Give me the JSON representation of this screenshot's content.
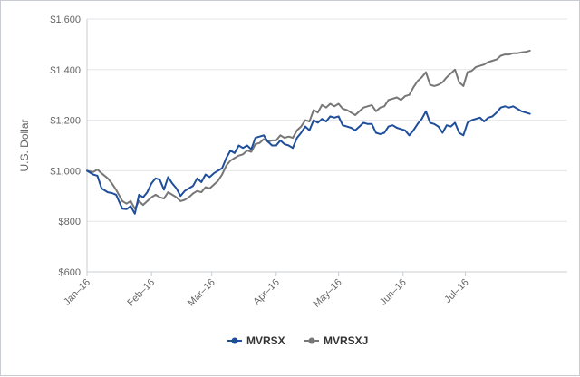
{
  "chart_data": {
    "type": "line",
    "title": "",
    "xlabel": "",
    "ylabel": "U.S. Dollar",
    "ylim": [
      600,
      1600
    ],
    "xlim": [
      "2016-01-01",
      "2016-08-19"
    ],
    "y_ticks": [
      600,
      800,
      1000,
      1200,
      1400,
      1600
    ],
    "y_tick_labels": [
      "$600",
      "$800",
      "$1,000",
      "$1,200",
      "$1,400",
      "$1,600"
    ],
    "x_ticks": [
      "2016-01-01",
      "2016-02-01",
      "2016-03-01",
      "2016-04-01",
      "2016-05-01",
      "2016-06-01",
      "2016-07-01"
    ],
    "x_tick_labels": [
      "Jan–16",
      "Feb–16",
      "Mar–16",
      "Apr–16",
      "May–16",
      "Jun–16",
      "Jul–16"
    ],
    "grid": "horizontal",
    "legend": "bottom-center",
    "series": [
      {
        "name": "MVRSX",
        "color": "#1f4e9a",
        "points": [
          [
            "2016-01-01",
            1000
          ],
          [
            "2016-01-04",
            985
          ],
          [
            "2016-01-06",
            980
          ],
          [
            "2016-01-08",
            930
          ],
          [
            "2016-01-11",
            915
          ],
          [
            "2016-01-13",
            912
          ],
          [
            "2016-01-15",
            905
          ],
          [
            "2016-01-18",
            850
          ],
          [
            "2016-01-20",
            848
          ],
          [
            "2016-01-22",
            860
          ],
          [
            "2016-01-24",
            830
          ],
          [
            "2016-01-26",
            905
          ],
          [
            "2016-01-28",
            895
          ],
          [
            "2016-01-30",
            915
          ],
          [
            "2016-02-01",
            950
          ],
          [
            "2016-02-03",
            970
          ],
          [
            "2016-02-05",
            965
          ],
          [
            "2016-02-07",
            925
          ],
          [
            "2016-02-09",
            975
          ],
          [
            "2016-02-11",
            950
          ],
          [
            "2016-02-13",
            930
          ],
          [
            "2016-02-15",
            900
          ],
          [
            "2016-02-17",
            920
          ],
          [
            "2016-02-19",
            930
          ],
          [
            "2016-02-21",
            940
          ],
          [
            "2016-02-23",
            970
          ],
          [
            "2016-02-25",
            955
          ],
          [
            "2016-02-27",
            985
          ],
          [
            "2016-02-29",
            975
          ],
          [
            "2016-03-02",
            990
          ],
          [
            "2016-03-04",
            1000
          ],
          [
            "2016-03-06",
            1010
          ],
          [
            "2016-03-08",
            1050
          ],
          [
            "2016-03-10",
            1080
          ],
          [
            "2016-03-12",
            1070
          ],
          [
            "2016-03-14",
            1100
          ],
          [
            "2016-03-16",
            1090
          ],
          [
            "2016-03-18",
            1100
          ],
          [
            "2016-03-20",
            1085
          ],
          [
            "2016-03-22",
            1130
          ],
          [
            "2016-03-24",
            1135
          ],
          [
            "2016-03-26",
            1140
          ],
          [
            "2016-03-28",
            1115
          ],
          [
            "2016-03-30",
            1100
          ],
          [
            "2016-04-01",
            1100
          ],
          [
            "2016-04-03",
            1120
          ],
          [
            "2016-04-05",
            1105
          ],
          [
            "2016-04-07",
            1100
          ],
          [
            "2016-04-09",
            1090
          ],
          [
            "2016-04-11",
            1130
          ],
          [
            "2016-04-13",
            1150
          ],
          [
            "2016-04-15",
            1175
          ],
          [
            "2016-04-17",
            1160
          ],
          [
            "2016-04-19",
            1200
          ],
          [
            "2016-04-21",
            1190
          ],
          [
            "2016-04-23",
            1205
          ],
          [
            "2016-04-25",
            1195
          ],
          [
            "2016-04-27",
            1215
          ],
          [
            "2016-04-29",
            1210
          ],
          [
            "2016-05-01",
            1215
          ],
          [
            "2016-05-03",
            1180
          ],
          [
            "2016-05-05",
            1175
          ],
          [
            "2016-05-07",
            1170
          ],
          [
            "2016-05-09",
            1160
          ],
          [
            "2016-05-11",
            1175
          ],
          [
            "2016-05-13",
            1190
          ],
          [
            "2016-05-15",
            1185
          ],
          [
            "2016-05-17",
            1185
          ],
          [
            "2016-05-19",
            1150
          ],
          [
            "2016-05-21",
            1145
          ],
          [
            "2016-05-23",
            1150
          ],
          [
            "2016-05-25",
            1175
          ],
          [
            "2016-05-27",
            1180
          ],
          [
            "2016-05-29",
            1170
          ],
          [
            "2016-05-31",
            1165
          ],
          [
            "2016-06-02",
            1160
          ],
          [
            "2016-06-04",
            1140
          ],
          [
            "2016-06-06",
            1160
          ],
          [
            "2016-06-08",
            1185
          ],
          [
            "2016-06-10",
            1205
          ],
          [
            "2016-06-12",
            1235
          ],
          [
            "2016-06-14",
            1190
          ],
          [
            "2016-06-16",
            1185
          ],
          [
            "2016-06-18",
            1175
          ],
          [
            "2016-06-20",
            1150
          ],
          [
            "2016-06-22",
            1180
          ],
          [
            "2016-06-24",
            1175
          ],
          [
            "2016-06-26",
            1190
          ],
          [
            "2016-06-28",
            1150
          ],
          [
            "2016-06-30",
            1140
          ],
          [
            "2016-07-02",
            1190
          ],
          [
            "2016-07-04",
            1200
          ],
          [
            "2016-07-06",
            1205
          ],
          [
            "2016-07-08",
            1210
          ],
          [
            "2016-07-10",
            1195
          ],
          [
            "2016-07-12",
            1210
          ],
          [
            "2016-07-14",
            1215
          ],
          [
            "2016-07-16",
            1230
          ],
          [
            "2016-07-18",
            1250
          ],
          [
            "2016-07-20",
            1255
          ],
          [
            "2016-07-22",
            1250
          ],
          [
            "2016-07-24",
            1255
          ],
          [
            "2016-07-26",
            1245
          ],
          [
            "2016-07-28",
            1235
          ],
          [
            "2016-07-30",
            1230
          ],
          [
            "2016-08-01",
            1225
          ]
        ]
      },
      {
        "name": "MVRSXJ",
        "color": "#777777",
        "points": [
          [
            "2016-01-01",
            1000
          ],
          [
            "2016-01-04",
            995
          ],
          [
            "2016-01-06",
            1005
          ],
          [
            "2016-01-08",
            990
          ],
          [
            "2016-01-11",
            970
          ],
          [
            "2016-01-13",
            950
          ],
          [
            "2016-01-15",
            925
          ],
          [
            "2016-01-18",
            880
          ],
          [
            "2016-01-20",
            870
          ],
          [
            "2016-01-22",
            880
          ],
          [
            "2016-01-24",
            850
          ],
          [
            "2016-01-26",
            880
          ],
          [
            "2016-01-28",
            865
          ],
          [
            "2016-01-30",
            880
          ],
          [
            "2016-02-01",
            895
          ],
          [
            "2016-02-03",
            905
          ],
          [
            "2016-02-05",
            895
          ],
          [
            "2016-02-07",
            890
          ],
          [
            "2016-02-09",
            915
          ],
          [
            "2016-02-11",
            905
          ],
          [
            "2016-02-13",
            895
          ],
          [
            "2016-02-15",
            880
          ],
          [
            "2016-02-17",
            885
          ],
          [
            "2016-02-19",
            895
          ],
          [
            "2016-02-21",
            910
          ],
          [
            "2016-02-23",
            920
          ],
          [
            "2016-02-25",
            915
          ],
          [
            "2016-02-27",
            935
          ],
          [
            "2016-02-29",
            930
          ],
          [
            "2016-03-02",
            945
          ],
          [
            "2016-03-04",
            960
          ],
          [
            "2016-03-06",
            985
          ],
          [
            "2016-03-08",
            1020
          ],
          [
            "2016-03-10",
            1040
          ],
          [
            "2016-03-12",
            1050
          ],
          [
            "2016-03-14",
            1060
          ],
          [
            "2016-03-16",
            1065
          ],
          [
            "2016-03-18",
            1080
          ],
          [
            "2016-03-20",
            1075
          ],
          [
            "2016-03-22",
            1105
          ],
          [
            "2016-03-24",
            1110
          ],
          [
            "2016-03-26",
            1125
          ],
          [
            "2016-03-28",
            1115
          ],
          [
            "2016-03-30",
            1120
          ],
          [
            "2016-04-01",
            1120
          ],
          [
            "2016-04-03",
            1140
          ],
          [
            "2016-04-05",
            1130
          ],
          [
            "2016-04-07",
            1135
          ],
          [
            "2016-04-09",
            1130
          ],
          [
            "2016-04-11",
            1160
          ],
          [
            "2016-04-13",
            1175
          ],
          [
            "2016-04-15",
            1200
          ],
          [
            "2016-04-17",
            1195
          ],
          [
            "2016-04-19",
            1240
          ],
          [
            "2016-04-21",
            1230
          ],
          [
            "2016-04-23",
            1260
          ],
          [
            "2016-04-25",
            1250
          ],
          [
            "2016-04-27",
            1265
          ],
          [
            "2016-04-29",
            1255
          ],
          [
            "2016-05-01",
            1265
          ],
          [
            "2016-05-03",
            1245
          ],
          [
            "2016-05-05",
            1240
          ],
          [
            "2016-05-07",
            1230
          ],
          [
            "2016-05-09",
            1220
          ],
          [
            "2016-05-11",
            1235
          ],
          [
            "2016-05-13",
            1250
          ],
          [
            "2016-05-15",
            1255
          ],
          [
            "2016-05-17",
            1260
          ],
          [
            "2016-05-19",
            1235
          ],
          [
            "2016-05-21",
            1250
          ],
          [
            "2016-05-23",
            1255
          ],
          [
            "2016-05-25",
            1280
          ],
          [
            "2016-05-27",
            1285
          ],
          [
            "2016-05-29",
            1290
          ],
          [
            "2016-05-31",
            1280
          ],
          [
            "2016-06-02",
            1295
          ],
          [
            "2016-06-04",
            1300
          ],
          [
            "2016-06-06",
            1330
          ],
          [
            "2016-06-08",
            1355
          ],
          [
            "2016-06-10",
            1370
          ],
          [
            "2016-06-12",
            1390
          ],
          [
            "2016-06-14",
            1340
          ],
          [
            "2016-06-16",
            1335
          ],
          [
            "2016-06-18",
            1340
          ],
          [
            "2016-06-20",
            1350
          ],
          [
            "2016-06-22",
            1370
          ],
          [
            "2016-06-24",
            1385
          ],
          [
            "2016-06-26",
            1400
          ],
          [
            "2016-06-28",
            1350
          ],
          [
            "2016-06-30",
            1335
          ],
          [
            "2016-07-02",
            1390
          ],
          [
            "2016-07-04",
            1395
          ],
          [
            "2016-07-06",
            1410
          ],
          [
            "2016-07-08",
            1415
          ],
          [
            "2016-07-10",
            1420
          ],
          [
            "2016-07-12",
            1430
          ],
          [
            "2016-07-14",
            1435
          ],
          [
            "2016-07-16",
            1440
          ],
          [
            "2016-07-18",
            1455
          ],
          [
            "2016-07-20",
            1460
          ],
          [
            "2016-07-22",
            1460
          ],
          [
            "2016-07-24",
            1465
          ],
          [
            "2016-07-26",
            1465
          ],
          [
            "2016-07-28",
            1468
          ],
          [
            "2016-07-30",
            1470
          ],
          [
            "2016-08-01",
            1475
          ]
        ]
      }
    ]
  }
}
